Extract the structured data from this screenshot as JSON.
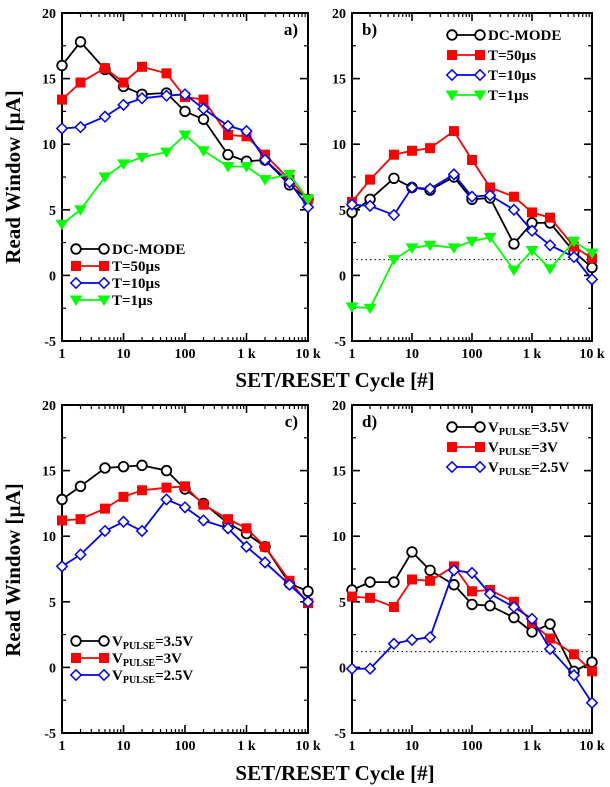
{
  "figure": {
    "ylabel_top": "Read Window [µA]",
    "ylabel_bottom": "Read Window [µA]",
    "xlabel_top": "SET/RESET Cycle [#]",
    "xlabel_bottom": "SET/RESET Cycle [#]"
  },
  "chart_data": [
    {
      "type": "line",
      "panel_label": "a)",
      "x_scale": "log",
      "xlim": [
        1,
        10000
      ],
      "ylim": [
        -5,
        20
      ],
      "x_ticks": [
        1,
        10,
        100,
        1000,
        10000
      ],
      "x_tick_labels": [
        "1",
        "10",
        "100",
        "1 k",
        "10 k"
      ],
      "y_ticks": [
        -5,
        0,
        5,
        10,
        15,
        20
      ],
      "y_tick_labels": [
        "-5",
        "0",
        "5",
        "10",
        "15",
        "20"
      ],
      "legend_position": "bottom-left",
      "reference_line": null,
      "series": [
        {
          "name": "DC-MODE",
          "marker": "circle-open",
          "color": "#000000",
          "x": [
            1,
            2,
            5,
            10,
            20,
            50,
            100,
            200,
            500,
            1000,
            2000,
            5000,
            10000
          ],
          "y": [
            16.0,
            17.8,
            15.7,
            14.4,
            13.8,
            13.9,
            12.5,
            11.9,
            9.2,
            8.7,
            8.8,
            6.9,
            5.8
          ]
        },
        {
          "name": "T=50µs",
          "marker": "square-filled",
          "color": "#ff0000",
          "x": [
            1,
            2,
            5,
            10,
            20,
            50,
            100,
            200,
            500,
            1000,
            2000,
            5000,
            10000
          ],
          "y": [
            13.4,
            14.7,
            15.8,
            14.7,
            15.9,
            15.4,
            13.6,
            13.4,
            10.7,
            10.6,
            9.2,
            7.3,
            5.8
          ]
        },
        {
          "name": "T=10µs",
          "marker": "diamond-open",
          "color": "#0000ff",
          "x": [
            1,
            2,
            5,
            10,
            20,
            50,
            100,
            200,
            500,
            1000,
            2000,
            5000,
            10000
          ],
          "y": [
            11.2,
            11.3,
            12.1,
            13.0,
            13.5,
            13.7,
            13.8,
            12.7,
            11.4,
            11.0,
            8.8,
            7.1,
            5.2
          ]
        },
        {
          "name": "T=1µs",
          "marker": "triangle-down-filled",
          "color": "#00ff00",
          "x": [
            1,
            2,
            5,
            10,
            20,
            50,
            100,
            200,
            500,
            1000,
            2000,
            5000,
            10000
          ],
          "y": [
            3.9,
            5.0,
            7.5,
            8.5,
            9.0,
            9.4,
            10.7,
            9.5,
            8.3,
            8.3,
            7.3,
            7.7,
            5.8
          ]
        }
      ]
    },
    {
      "type": "line",
      "panel_label": "b)",
      "x_scale": "log",
      "xlim": [
        1,
        10000
      ],
      "ylim": [
        -5,
        20
      ],
      "x_ticks": [
        1,
        10,
        100,
        1000,
        10000
      ],
      "x_tick_labels": [
        "1",
        "10",
        "100",
        "1 k",
        "10 k"
      ],
      "y_ticks": [
        -5,
        0,
        5,
        10,
        15,
        20
      ],
      "y_tick_labels": [
        "-5",
        "0",
        "5",
        "10",
        "15",
        "20"
      ],
      "legend_position": "top-right",
      "reference_line": 1.2,
      "series": [
        {
          "name": "DC-MODE",
          "marker": "circle-open",
          "color": "#000000",
          "x": [
            1,
            2,
            5,
            10,
            20,
            50,
            100,
            200,
            500,
            1000,
            2000,
            5000,
            10000
          ],
          "y": [
            4.8,
            5.8,
            7.4,
            6.7,
            6.5,
            7.5,
            5.8,
            5.9,
            2.4,
            4.0,
            4.0,
            1.8,
            0.6
          ]
        },
        {
          "name": "T=50µs",
          "marker": "square-filled",
          "color": "#ff0000",
          "x": [
            1,
            2,
            5,
            10,
            20,
            50,
            100,
            200,
            500,
            1000,
            2000,
            5000,
            10000
          ],
          "y": [
            5.6,
            7.3,
            9.2,
            9.5,
            9.7,
            11.0,
            8.8,
            6.7,
            6.0,
            4.8,
            4.4,
            2.2,
            1.3
          ]
        },
        {
          "name": "T=10µs",
          "marker": "diamond-open",
          "color": "#0000ff",
          "x": [
            1,
            2,
            5,
            10,
            20,
            50,
            100,
            200,
            500,
            1000,
            2000,
            5000,
            10000
          ],
          "y": [
            5.4,
            5.3,
            4.6,
            6.7,
            6.6,
            7.7,
            6.0,
            6.1,
            5.0,
            3.4,
            2.3,
            1.4,
            -0.3
          ]
        },
        {
          "name": "T=1µs",
          "marker": "triangle-down-filled",
          "color": "#00ff00",
          "x": [
            1,
            2,
            5,
            10,
            20,
            50,
            100,
            200,
            500,
            1000,
            2000,
            5000,
            10000
          ],
          "y": [
            -2.4,
            -2.5,
            1.2,
            2.1,
            2.3,
            2.1,
            2.6,
            2.9,
            0.4,
            1.9,
            0.5,
            2.6,
            1.7
          ]
        }
      ]
    },
    {
      "type": "line",
      "panel_label": "c)",
      "x_scale": "log",
      "xlim": [
        1,
        10000
      ],
      "ylim": [
        -5,
        20
      ],
      "x_ticks": [
        1,
        10,
        100,
        1000,
        10000
      ],
      "x_tick_labels": [
        "1",
        "10",
        "100",
        "1 k",
        "10 k"
      ],
      "y_ticks": [
        -5,
        0,
        5,
        10,
        15,
        20
      ],
      "y_tick_labels": [
        "-5",
        "0",
        "5",
        "10",
        "15",
        "20"
      ],
      "legend_position": "bottom-left",
      "reference_line": null,
      "series": [
        {
          "name": "V",
          "subscript": "PULSE",
          "suffix": "=3.5V",
          "marker": "circle-open",
          "color": "#000000",
          "x": [
            1,
            2,
            5,
            10,
            20,
            50,
            100,
            200,
            500,
            1000,
            2000,
            5000,
            10000
          ],
          "y": [
            12.8,
            13.8,
            15.2,
            15.3,
            15.4,
            15.0,
            13.6,
            12.5,
            11.0,
            10.2,
            9.2,
            6.4,
            5.8
          ]
        },
        {
          "name": "V",
          "subscript": "PULSE",
          "suffix": "=3V",
          "marker": "square-filled",
          "color": "#ff0000",
          "x": [
            1,
            2,
            5,
            10,
            20,
            50,
            100,
            200,
            500,
            1000,
            2000,
            5000,
            10000
          ],
          "y": [
            11.2,
            11.3,
            12.1,
            13.0,
            13.5,
            13.7,
            13.8,
            12.4,
            11.3,
            10.6,
            9.2,
            6.6,
            4.9
          ]
        },
        {
          "name": "V",
          "subscript": "PULSE",
          "suffix": "=2.5V",
          "marker": "diamond-open",
          "color": "#0000ff",
          "x": [
            1,
            2,
            5,
            10,
            20,
            50,
            100,
            200,
            500,
            1000,
            2000,
            5000,
            10000
          ],
          "y": [
            7.7,
            8.6,
            10.4,
            11.1,
            10.4,
            12.8,
            12.2,
            11.2,
            10.6,
            9.2,
            8.0,
            6.3,
            5.0
          ]
        }
      ]
    },
    {
      "type": "line",
      "panel_label": "d)",
      "x_scale": "log",
      "xlim": [
        1,
        10000
      ],
      "ylim": [
        -5,
        20
      ],
      "x_ticks": [
        1,
        10,
        100,
        1000,
        10000
      ],
      "x_tick_labels": [
        "1",
        "10",
        "100",
        "1 k",
        "10 k"
      ],
      "y_ticks": [
        -5,
        0,
        5,
        10,
        15,
        20
      ],
      "y_tick_labels": [
        "-5",
        "0",
        "5",
        "10",
        "15",
        "20"
      ],
      "legend_position": "top-right",
      "reference_line": 1.2,
      "series": [
        {
          "name": "V",
          "subscript": "PULSE",
          "suffix": "=3.5V",
          "marker": "circle-open",
          "color": "#000000",
          "x": [
            1,
            2,
            5,
            10,
            20,
            50,
            100,
            200,
            500,
            1000,
            2000,
            5000,
            10000
          ],
          "y": [
            5.9,
            6.5,
            6.5,
            8.8,
            7.4,
            6.3,
            4.8,
            4.7,
            3.8,
            2.7,
            3.3,
            -0.3,
            0.4
          ]
        },
        {
          "name": "V",
          "subscript": "PULSE",
          "suffix": "=3V",
          "marker": "square-filled",
          "color": "#ff0000",
          "x": [
            1,
            2,
            5,
            10,
            20,
            50,
            100,
            200,
            500,
            1000,
            2000,
            5000,
            10000
          ],
          "y": [
            5.4,
            5.3,
            4.6,
            6.7,
            6.6,
            7.7,
            5.8,
            5.9,
            5.0,
            3.4,
            2.2,
            1.0,
            -0.3
          ]
        },
        {
          "name": "V",
          "subscript": "PULSE",
          "suffix": "=2.5V",
          "marker": "diamond-open",
          "color": "#0000ff",
          "x": [
            1,
            2,
            5,
            10,
            20,
            50,
            100,
            200,
            500,
            1000,
            2000,
            5000,
            10000
          ],
          "y": [
            -0.1,
            -0.1,
            1.8,
            2.1,
            2.3,
            7.4,
            7.2,
            5.6,
            4.6,
            3.7,
            1.4,
            -0.6,
            -2.7
          ]
        }
      ]
    }
  ]
}
